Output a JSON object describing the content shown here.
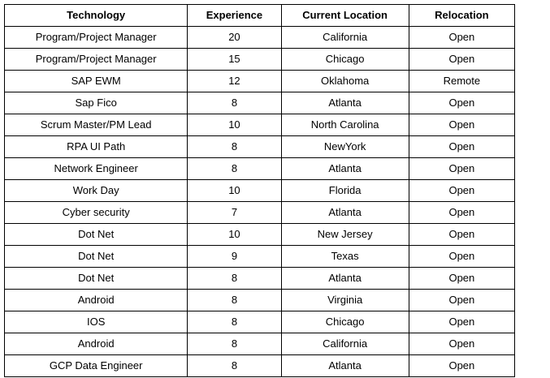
{
  "table": {
    "headers": [
      "Technology",
      "Experience",
      "Current Location",
      "Relocation"
    ],
    "rows": [
      [
        "Program/Project Manager",
        "20",
        "California",
        "Open"
      ],
      [
        "Program/Project Manager",
        "15",
        "Chicago",
        "Open"
      ],
      [
        "SAP EWM",
        "12",
        "Oklahoma",
        "Remote"
      ],
      [
        "Sap Fico",
        "8",
        "Atlanta",
        "Open"
      ],
      [
        "Scrum Master/PM Lead",
        "10",
        "North Carolina",
        "Open"
      ],
      [
        "RPA UI Path",
        "8",
        "NewYork",
        "Open"
      ],
      [
        "Network Engineer",
        "8",
        "Atlanta",
        "Open"
      ],
      [
        "Work Day",
        "10",
        "Florida",
        "Open"
      ],
      [
        "Cyber security",
        "7",
        "Atlanta",
        "Open"
      ],
      [
        "Dot Net",
        "10",
        "New Jersey",
        "Open"
      ],
      [
        "Dot Net",
        "9",
        "Texas",
        "Open"
      ],
      [
        "Dot Net",
        "8",
        "Atlanta",
        "Open"
      ],
      [
        "Android",
        "8",
        "Virginia",
        "Open"
      ],
      [
        "IOS",
        "8",
        "Chicago",
        "Open"
      ],
      [
        "Android",
        "8",
        "California",
        "Open"
      ],
      [
        "GCP Data Engineer",
        "8",
        "Atlanta",
        "Open"
      ]
    ]
  }
}
